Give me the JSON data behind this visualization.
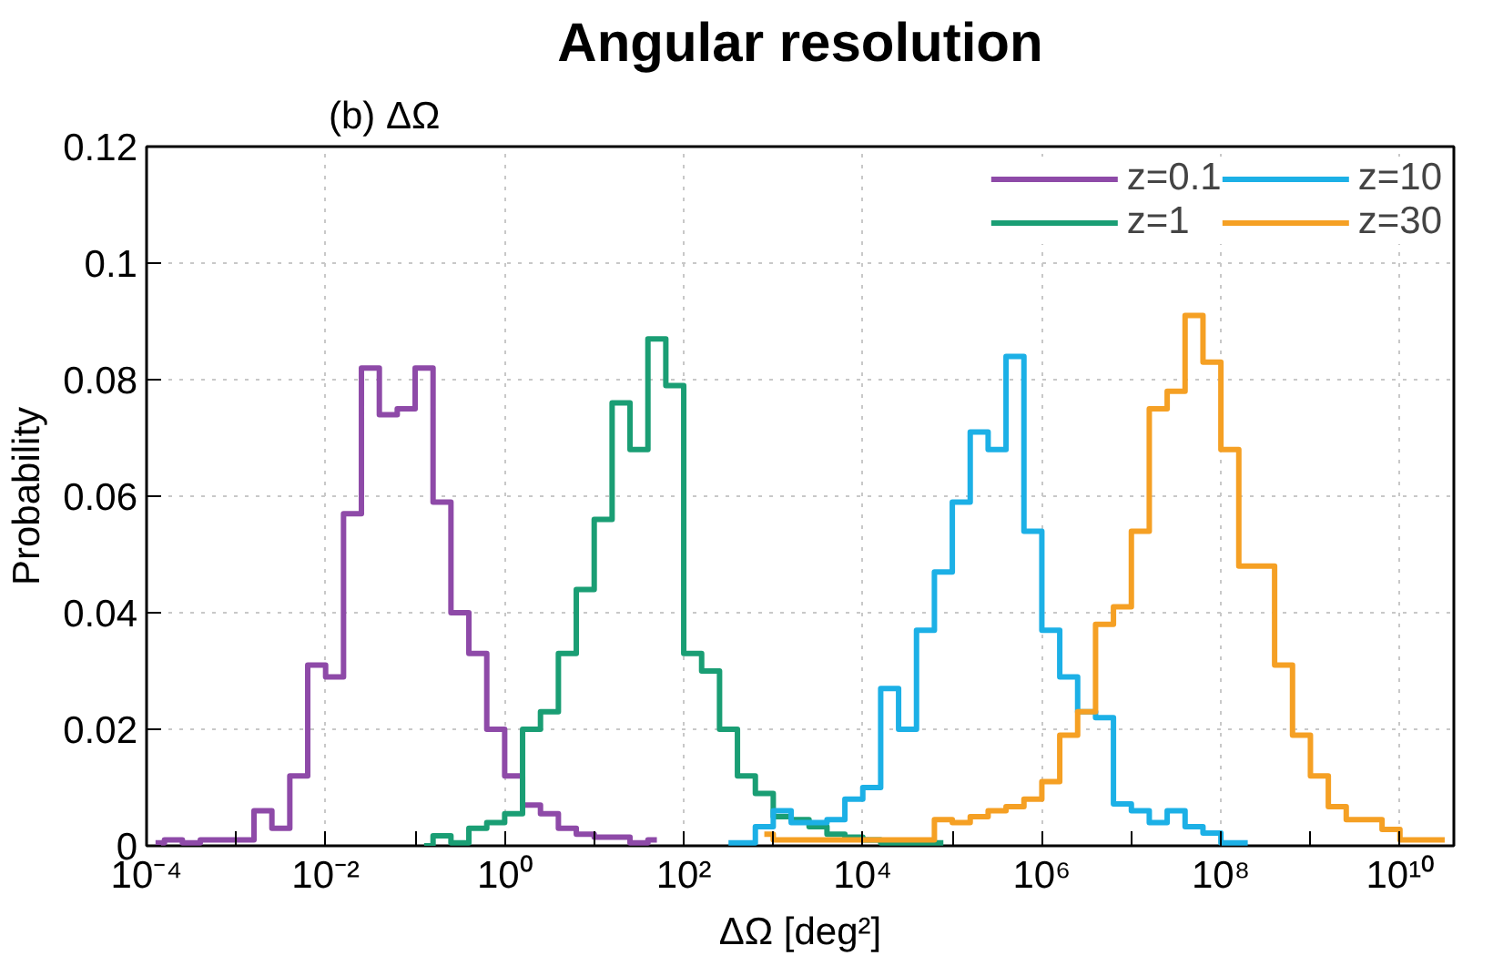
{
  "chart_data": {
    "type": "step",
    "title": "Angular resolution",
    "annotations": [
      "(b) ΔΩ"
    ],
    "xlabel": "ΔΩ [deg²]",
    "ylabel": "Probability",
    "log": "x",
    "grid": true,
    "legend": "top right",
    "line_style": "solid",
    "marker": "none",
    "xlim": [
      0.0001,
      40000000000
    ],
    "ylim": [
      0,
      0.12
    ],
    "xticks": [
      {
        "value": 0.0001,
        "label": "10⁻⁴"
      },
      {
        "value": 0.001,
        "label": null
      },
      {
        "value": 0.01,
        "label": "10⁻²"
      },
      {
        "value": 0.1,
        "label": null
      },
      {
        "value": 1,
        "label": "10⁰"
      },
      {
        "value": 10,
        "label": null
      },
      {
        "value": 100,
        "label": "10²"
      },
      {
        "value": 1000,
        "label": null
      },
      {
        "value": 10000,
        "label": "10⁴"
      },
      {
        "value": 100000,
        "label": null
      },
      {
        "value": 1000000,
        "label": "10⁶"
      },
      {
        "value": 10000000,
        "label": null
      },
      {
        "value": 100000000,
        "label": "10⁸"
      },
      {
        "value": 1000000000,
        "label": null
      },
      {
        "value": 10000000000,
        "label": "10¹⁰"
      }
    ],
    "yticks": [
      0,
      0.02,
      0.04,
      0.06,
      0.08,
      0.1,
      0.12
    ],
    "series": [
      {
        "name": "z=0.1",
        "color": "#8e4aa8",
        "x": [
          0.0001259,
          0.0001995,
          0.0003162,
          0.0005012,
          0.0007943,
          0.001259,
          0.001995,
          0.003162,
          0.005012,
          0.007943,
          0.01259,
          0.01995,
          0.03162,
          0.05012,
          0.07943,
          0.1259,
          0.1995,
          0.3162,
          0.5012,
          0.7943,
          1.259,
          1.995,
          3.162,
          5.012,
          7.943,
          12.59,
          19.95,
          31.62,
          50.12
        ],
        "values": [
          0.0005,
          0.001,
          0.0005,
          0.001,
          0.001,
          0.001,
          0.006,
          0.003,
          0.012,
          0.031,
          0.029,
          0.057,
          0.082,
          0.074,
          0.075,
          0.082,
          0.059,
          0.04,
          0.033,
          0.02,
          0.012,
          0.007,
          0.0055,
          0.003,
          0.002,
          0.0015,
          0.0015,
          0.0005,
          0.001
        ]
      },
      {
        "name": "z=1",
        "color": "#1a9e74",
        "x": [
          0.1259,
          0.1995,
          0.3162,
          0.5012,
          0.7943,
          1.259,
          1.995,
          3.162,
          5.012,
          7.943,
          12.59,
          19.95,
          31.62,
          50.12,
          79.43,
          125.9,
          199.5,
          316.2,
          501.2,
          794.3,
          1259,
          1995,
          3162,
          5012,
          7943,
          12590,
          19950,
          31620,
          50120,
          79430
        ],
        "values": [
          0,
          0.0017,
          0.0005,
          0.003,
          0.004,
          0.0055,
          0.02,
          0.023,
          0.033,
          0.044,
          0.056,
          0.076,
          0.068,
          0.087,
          0.079,
          0.033,
          0.03,
          0.02,
          0.012,
          0.009,
          0.005,
          0.0045,
          0.0033,
          0.002,
          0.0015,
          0.001,
          0.0005,
          0.0005,
          0.0005,
          0.0005
        ]
      },
      {
        "name": "z=10",
        "color": "#1cb0e6",
        "x": [
          316.2,
          501.2,
          794.3,
          1259,
          1995,
          3162,
          5012,
          7943,
          12590,
          19950,
          31620,
          50120,
          79430,
          125900,
          199500,
          316200,
          501200,
          794300,
          1259000,
          1995000,
          3162000,
          5012000,
          7943000,
          12590000,
          19950000,
          31620000,
          50120000,
          79430000,
          125900000,
          199500000
        ],
        "values": [
          0.0005,
          0.0005,
          0.0033,
          0.006,
          0.004,
          0.004,
          0.0045,
          0.008,
          0.01,
          0.027,
          0.02,
          0.037,
          0.047,
          0.059,
          0.071,
          0.068,
          0.084,
          0.054,
          0.037,
          0.029,
          0.023,
          0.022,
          0.0072,
          0.006,
          0.004,
          0.006,
          0.0033,
          0.0022,
          0.0005,
          0.0005
        ]
      },
      {
        "name": "z=30",
        "color": "#f5a024",
        "x": [
          794.3,
          1259,
          1995,
          3162,
          5012,
          7943,
          12590,
          19950,
          31620,
          50120,
          79430,
          125900,
          199500,
          316200,
          501200,
          794300,
          1259000,
          1995000,
          3162000,
          5012000,
          7943000,
          12590000,
          19950000,
          31620000,
          50120000,
          79430000,
          125900000,
          199500000,
          316200000,
          501200000,
          794300000,
          1259000000,
          1995000000,
          3162000000,
          5012000000,
          7943000000,
          12590000000,
          19950000000,
          31620000000
        ],
        "values": [
          0.002,
          0.001,
          0.001,
          0.001,
          0.001,
          0.001,
          0.001,
          0.001,
          0.001,
          0.001,
          0.0045,
          0.004,
          0.005,
          0.006,
          0.0067,
          0.008,
          0.011,
          0.019,
          0.023,
          0.038,
          0.041,
          0.054,
          0.075,
          0.078,
          0.091,
          0.083,
          0.068,
          0.048,
          0.048,
          0.031,
          0.019,
          0.012,
          0.0067,
          0.0045,
          0.0045,
          0.0028,
          0.001,
          0.001,
          0.001
        ]
      }
    ]
  }
}
